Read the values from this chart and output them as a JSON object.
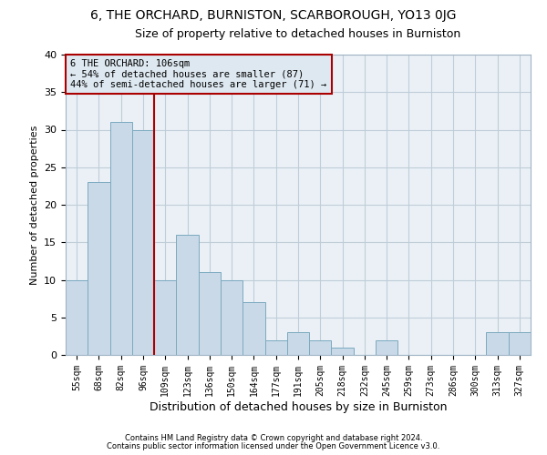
{
  "title": "6, THE ORCHARD, BURNISTON, SCARBOROUGH, YO13 0JG",
  "subtitle": "Size of property relative to detached houses in Burniston",
  "xlabel": "Distribution of detached houses by size in Burniston",
  "ylabel": "Number of detached properties",
  "categories": [
    "55sqm",
    "68sqm",
    "82sqm",
    "96sqm",
    "109sqm",
    "123sqm",
    "136sqm",
    "150sqm",
    "164sqm",
    "177sqm",
    "191sqm",
    "205sqm",
    "218sqm",
    "232sqm",
    "245sqm",
    "259sqm",
    "273sqm",
    "286sqm",
    "300sqm",
    "313sqm",
    "327sqm"
  ],
  "values": [
    10,
    23,
    31,
    30,
    10,
    16,
    11,
    10,
    7,
    2,
    3,
    2,
    1,
    0,
    2,
    0,
    0,
    0,
    0,
    3,
    3
  ],
  "bar_color": "#c9d9e8",
  "bar_edge_color": "#7baabf",
  "vline_x": 3.5,
  "vline_color": "#aa0000",
  "annotation_lines": [
    "6 THE ORCHARD: 106sqm",
    "← 54% of detached houses are smaller (87)",
    "44% of semi-detached houses are larger (71) →"
  ],
  "annotation_box_color": "#dde8f0",
  "annotation_box_edge": "#aa0000",
  "ylim": [
    0,
    40
  ],
  "yticks": [
    0,
    5,
    10,
    15,
    20,
    25,
    30,
    35,
    40
  ],
  "footer1": "Contains HM Land Registry data © Crown copyright and database right 2024.",
  "footer2": "Contains public sector information licensed under the Open Government Licence v3.0.",
  "bg_color": "#ffffff",
  "plot_bg_color": "#eaf0f6",
  "grid_color": "#c0cdd8",
  "title_fontsize": 10,
  "subtitle_fontsize": 9,
  "annotation_fontsize": 7.5,
  "axis_label_fontsize": 8,
  "tick_fontsize": 7,
  "footer_fontsize": 6
}
